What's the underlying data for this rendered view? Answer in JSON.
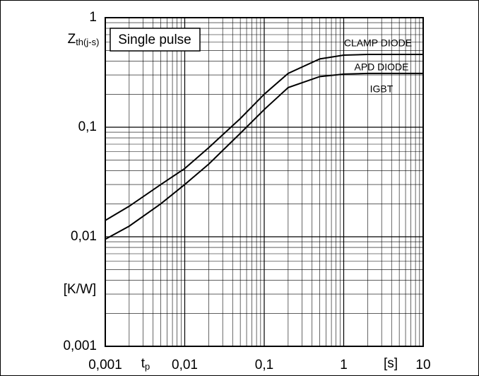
{
  "chart_data": {
    "type": "line",
    "x_label": {
      "main": "t",
      "sub": "p"
    },
    "x_unit": "[s]",
    "y_label": {
      "main": "Z",
      "sub": "th(j-s)"
    },
    "y_unit": "[K/W]",
    "annotations": [
      "Single pulse",
      "IGBT"
    ],
    "x": [
      0.001,
      0.002,
      0.005,
      0.01,
      0.02,
      0.05,
      0.1,
      0.2,
      0.5,
      1,
      2,
      5,
      10
    ],
    "series": [
      {
        "name": "CLAMP DIODE",
        "color": "#000000",
        "values": [
          0.0141,
          0.019,
          0.03,
          0.042,
          0.065,
          0.12,
          0.2,
          0.31,
          0.42,
          0.455,
          0.462,
          0.462,
          0.462
        ]
      },
      {
        "name": "APD DIODE",
        "color": "#000000",
        "values": [
          0.0095,
          0.0125,
          0.02,
          0.03,
          0.046,
          0.088,
          0.145,
          0.23,
          0.29,
          0.305,
          0.31,
          0.31,
          0.31
        ]
      }
    ],
    "log_x": true,
    "log_y": true,
    "grid": true,
    "minor_grid": true,
    "xlim": [
      0.001,
      10
    ],
    "xticks": [
      {
        "value": 0.001,
        "label": "0,001"
      },
      {
        "value": 0.01,
        "label": "0,01"
      },
      {
        "value": 0.1,
        "label": "0,1"
      },
      1,
      10
    ],
    "ylim": [
      0.001,
      1
    ],
    "yticks": [
      {
        "value": 0.001,
        "label": "0,001"
      },
      {
        "value": 0.01,
        "label": "0,01"
      },
      {
        "value": 0.1,
        "label": "0,1"
      },
      1
    ]
  }
}
